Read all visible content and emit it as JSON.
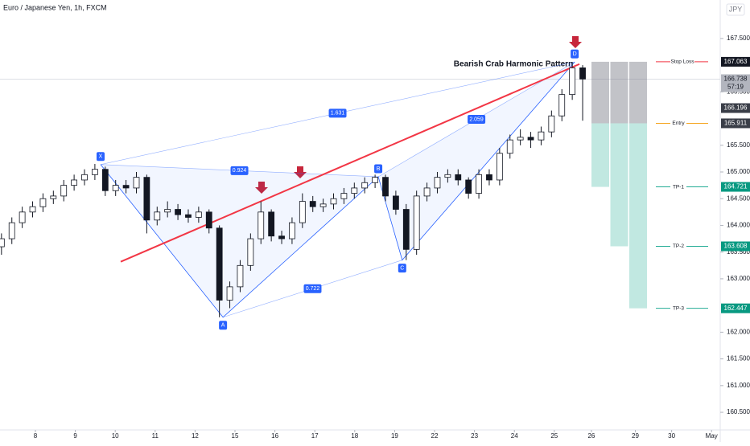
{
  "chart_data": {
    "type": "candlestick",
    "header": "Euro / Japanese Yen, 1h, FXCM",
    "currency": "JPY",
    "title": "Bearish Crab Harmonic Pattern",
    "xlim": [
      -0.887,
      17.157
    ],
    "xticks": [
      {
        "value": 0,
        "label": "8"
      },
      {
        "value": 1,
        "label": "9"
      },
      {
        "value": 2,
        "label": "10"
      },
      {
        "value": 3,
        "label": "11"
      },
      {
        "value": 4,
        "label": "12"
      },
      {
        "value": 5,
        "label": "15"
      },
      {
        "value": 6,
        "label": "16"
      },
      {
        "value": 7,
        "label": "17"
      },
      {
        "value": 8,
        "label": "18"
      },
      {
        "value": 9,
        "label": "19"
      },
      {
        "value": 10,
        "label": "22"
      },
      {
        "value": 11,
        "label": "23"
      },
      {
        "value": 12,
        "label": "24"
      },
      {
        "value": 13,
        "label": "25"
      },
      {
        "value": 13.93,
        "label": "26"
      },
      {
        "value": 15.03,
        "label": "29"
      },
      {
        "value": 15.94,
        "label": "30"
      },
      {
        "value": 16.94,
        "label": "May"
      }
    ],
    "ylim": [
      160.17,
      168.22
    ],
    "yticks": [
      {
        "value": 167.5,
        "label": "167.500"
      },
      {
        "value": 166.5,
        "label": "166.500"
      },
      {
        "value": 165.5,
        "label": "165.500"
      },
      {
        "value": 165,
        "label": "165.000"
      },
      {
        "value": 164.5,
        "label": "164.500"
      },
      {
        "value": 164,
        "label": "164.000"
      },
      {
        "value": 163.5,
        "label": "163.500"
      },
      {
        "value": 163,
        "label": "163.000"
      },
      {
        "value": 162,
        "label": "162.000"
      },
      {
        "value": 161.5,
        "label": "161.500"
      },
      {
        "value": 161,
        "label": "161.000"
      },
      {
        "value": 160.5,
        "label": "160.500"
      }
    ],
    "x": [
      -0.85,
      -0.59,
      -0.33,
      -0.07,
      0.19,
      0.45,
      0.71,
      0.97,
      1.23,
      1.49,
      1.75,
      2.01,
      2.27,
      2.53,
      2.79,
      3.05,
      3.31,
      3.57,
      3.83,
      4.09,
      4.35,
      4.61,
      4.87,
      5.13,
      5.39,
      5.65,
      5.91,
      6.17,
      6.43,
      6.69,
      6.95,
      7.21,
      7.47,
      7.73,
      7.99,
      8.25,
      8.51,
      8.77,
      9.03,
      9.29,
      9.55,
      9.81,
      10.07,
      10.33,
      10.59,
      10.85,
      11.11,
      11.37,
      11.63,
      11.89,
      12.15,
      12.41,
      12.67,
      12.93,
      13.19,
      13.45,
      13.71
    ],
    "open": [
      163.6,
      163.75,
      164.05,
      164.25,
      164.35,
      164.5,
      164.55,
      164.75,
      164.85,
      164.95,
      165.05,
      164.65,
      164.75,
      164.7,
      164.9,
      164.1,
      164.25,
      164.3,
      164.2,
      164.15,
      164.25,
      163.95,
      162.6,
      162.85,
      163.25,
      163.75,
      164.25,
      163.8,
      163.75,
      164.05,
      164.45,
      164.35,
      164.4,
      164.5,
      164.6,
      164.7,
      164.8,
      164.9,
      164.55,
      164.3,
      163.55,
      164.55,
      164.7,
      164.9,
      164.95,
      164.85,
      164.6,
      164.95,
      164.85,
      165.35,
      165.6,
      165.65,
      165.6,
      165.75,
      166.05,
      166.45,
      166.95
    ],
    "high": [
      163.85,
      164.15,
      164.35,
      164.45,
      164.6,
      164.65,
      164.85,
      164.95,
      165.05,
      165.15,
      165.1,
      164.85,
      164.85,
      165.0,
      164.95,
      164.35,
      164.45,
      164.4,
      164.3,
      164.35,
      164.3,
      164.0,
      162.95,
      163.35,
      163.85,
      164.45,
      164.3,
      163.9,
      164.15,
      164.6,
      164.55,
      164.5,
      164.6,
      164.7,
      164.8,
      164.9,
      164.95,
      164.95,
      164.65,
      164.4,
      164.65,
      164.8,
      165.0,
      165.05,
      165.05,
      164.9,
      165.05,
      165.05,
      165.45,
      165.7,
      165.8,
      165.75,
      165.85,
      166.15,
      166.55,
      167.06,
      167.0
    ],
    "low": [
      163.45,
      163.65,
      163.95,
      164.15,
      164.25,
      164.4,
      164.45,
      164.65,
      164.75,
      164.85,
      164.55,
      164.55,
      164.6,
      164.6,
      163.85,
      164.0,
      164.15,
      164.1,
      164.05,
      164.05,
      163.85,
      162.28,
      162.45,
      162.75,
      163.15,
      163.65,
      163.7,
      163.65,
      163.65,
      163.95,
      164.25,
      164.25,
      164.3,
      164.4,
      164.5,
      164.6,
      164.7,
      164.45,
      164.2,
      163.35,
      163.45,
      164.45,
      164.6,
      164.8,
      164.75,
      164.5,
      164.5,
      164.75,
      164.75,
      165.25,
      165.5,
      165.45,
      165.5,
      165.65,
      165.95,
      166.35,
      165.96
    ],
    "close": [
      163.75,
      164.05,
      164.25,
      164.35,
      164.5,
      164.55,
      164.75,
      164.85,
      164.95,
      165.05,
      164.65,
      164.75,
      164.7,
      164.9,
      164.1,
      164.25,
      164.3,
      164.2,
      164.15,
      164.25,
      163.95,
      162.6,
      162.85,
      163.25,
      163.75,
      164.25,
      163.8,
      163.75,
      164.05,
      164.45,
      164.35,
      164.4,
      164.5,
      164.6,
      164.7,
      164.8,
      164.9,
      164.55,
      164.3,
      163.55,
      164.55,
      164.7,
      164.9,
      164.95,
      164.85,
      164.6,
      164.95,
      164.85,
      165.35,
      165.6,
      165.65,
      165.6,
      165.75,
      166.05,
      166.45,
      166.95,
      166.74
    ],
    "pattern": [
      {
        "label": "X",
        "x": 1.633,
        "y": 165.14
      },
      {
        "label": "A",
        "x": 4.7,
        "y": 162.28
      },
      {
        "label": "B",
        "x": 8.59,
        "y": 164.91
      },
      {
        "label": "C",
        "x": 9.19,
        "y": 163.35
      },
      {
        "label": "D",
        "x": 13.51,
        "y": 167.06
      }
    ],
    "ratios": [
      {
        "label": "1.631",
        "from": 0,
        "to": 4
      },
      {
        "label": "0.924",
        "from": 0,
        "to": 2
      },
      {
        "label": "0.722",
        "from": 1,
        "to": 3
      },
      {
        "label": "2.059",
        "from": 2,
        "to": 4
      }
    ],
    "trendline": {
      "x": [
        2.137,
        13.63
      ],
      "y": [
        163.32,
        167.02
      ],
      "color": "#f23645"
    },
    "levels": [
      {
        "name": "Stop Loss",
        "value": 167.063,
        "label": "167.063",
        "color": "#f23645",
        "badge": "#131722"
      },
      {
        "name": "Entry",
        "value": 165.911,
        "label": "165.911",
        "color": "#f5a623",
        "badge": "#3a3e48"
      },
      {
        "name": "TP-1",
        "value": 164.721,
        "label": "164.721",
        "color": "#22ab94",
        "badge": "#089981"
      },
      {
        "name": "TP-2",
        "value": 163.608,
        "label": "163.608",
        "color": "#22ab94",
        "badge": "#089981"
      },
      {
        "name": "TP-3",
        "value": 162.447,
        "label": "162.447",
        "color": "#22ab94",
        "badge": "#089981"
      }
    ],
    "marker": {
      "value": 166.196,
      "label": "166.196"
    },
    "last_price": {
      "value": 166.738,
      "label": "166.738",
      "countdown": "57:19"
    }
  }
}
